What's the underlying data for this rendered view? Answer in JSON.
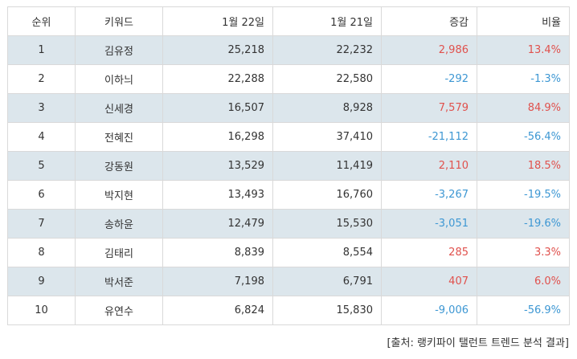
{
  "table": {
    "headers": [
      "순위",
      "키워드",
      "1월 22일",
      "1월 21일",
      "증감",
      "비율"
    ],
    "rows": [
      {
        "rank": "1",
        "keyword": "김유정",
        "jan22": "25,218",
        "jan21": "22,232",
        "change": "2,986",
        "ratio": "13.4%",
        "dir": "pos"
      },
      {
        "rank": "2",
        "keyword": "이하늬",
        "jan22": "22,288",
        "jan21": "22,580",
        "change": "-292",
        "ratio": "-1.3%",
        "dir": "neg"
      },
      {
        "rank": "3",
        "keyword": "신세경",
        "jan22": "16,507",
        "jan21": "8,928",
        "change": "7,579",
        "ratio": "84.9%",
        "dir": "pos"
      },
      {
        "rank": "4",
        "keyword": "전혜진",
        "jan22": "16,298",
        "jan21": "37,410",
        "change": "-21,112",
        "ratio": "-56.4%",
        "dir": "neg"
      },
      {
        "rank": "5",
        "keyword": "강동원",
        "jan22": "13,529",
        "jan21": "11,419",
        "change": "2,110",
        "ratio": "18.5%",
        "dir": "pos"
      },
      {
        "rank": "6",
        "keyword": "박지현",
        "jan22": "13,493",
        "jan21": "16,760",
        "change": "-3,267",
        "ratio": "-19.5%",
        "dir": "neg"
      },
      {
        "rank": "7",
        "keyword": "송하윤",
        "jan22": "12,479",
        "jan21": "15,530",
        "change": "-3,051",
        "ratio": "-19.6%",
        "dir": "neg"
      },
      {
        "rank": "8",
        "keyword": "김태리",
        "jan22": "8,839",
        "jan21": "8,554",
        "change": "285",
        "ratio": "3.3%",
        "dir": "pos"
      },
      {
        "rank": "9",
        "keyword": "박서준",
        "jan22": "7,198",
        "jan21": "6,791",
        "change": "407",
        "ratio": "6.0%",
        "dir": "pos"
      },
      {
        "rank": "10",
        "keyword": "유연수",
        "jan22": "6,824",
        "jan21": "15,830",
        "change": "-9,006",
        "ratio": "-56.9%",
        "dir": "neg"
      }
    ]
  },
  "source": "[출처: 랭키파이 탤런트 트렌드 분석 결과]",
  "colors": {
    "positive": "#e0514d",
    "negative": "#3d97d3",
    "shaded_row": "#dce6ec",
    "border": "#d9d9d9"
  }
}
